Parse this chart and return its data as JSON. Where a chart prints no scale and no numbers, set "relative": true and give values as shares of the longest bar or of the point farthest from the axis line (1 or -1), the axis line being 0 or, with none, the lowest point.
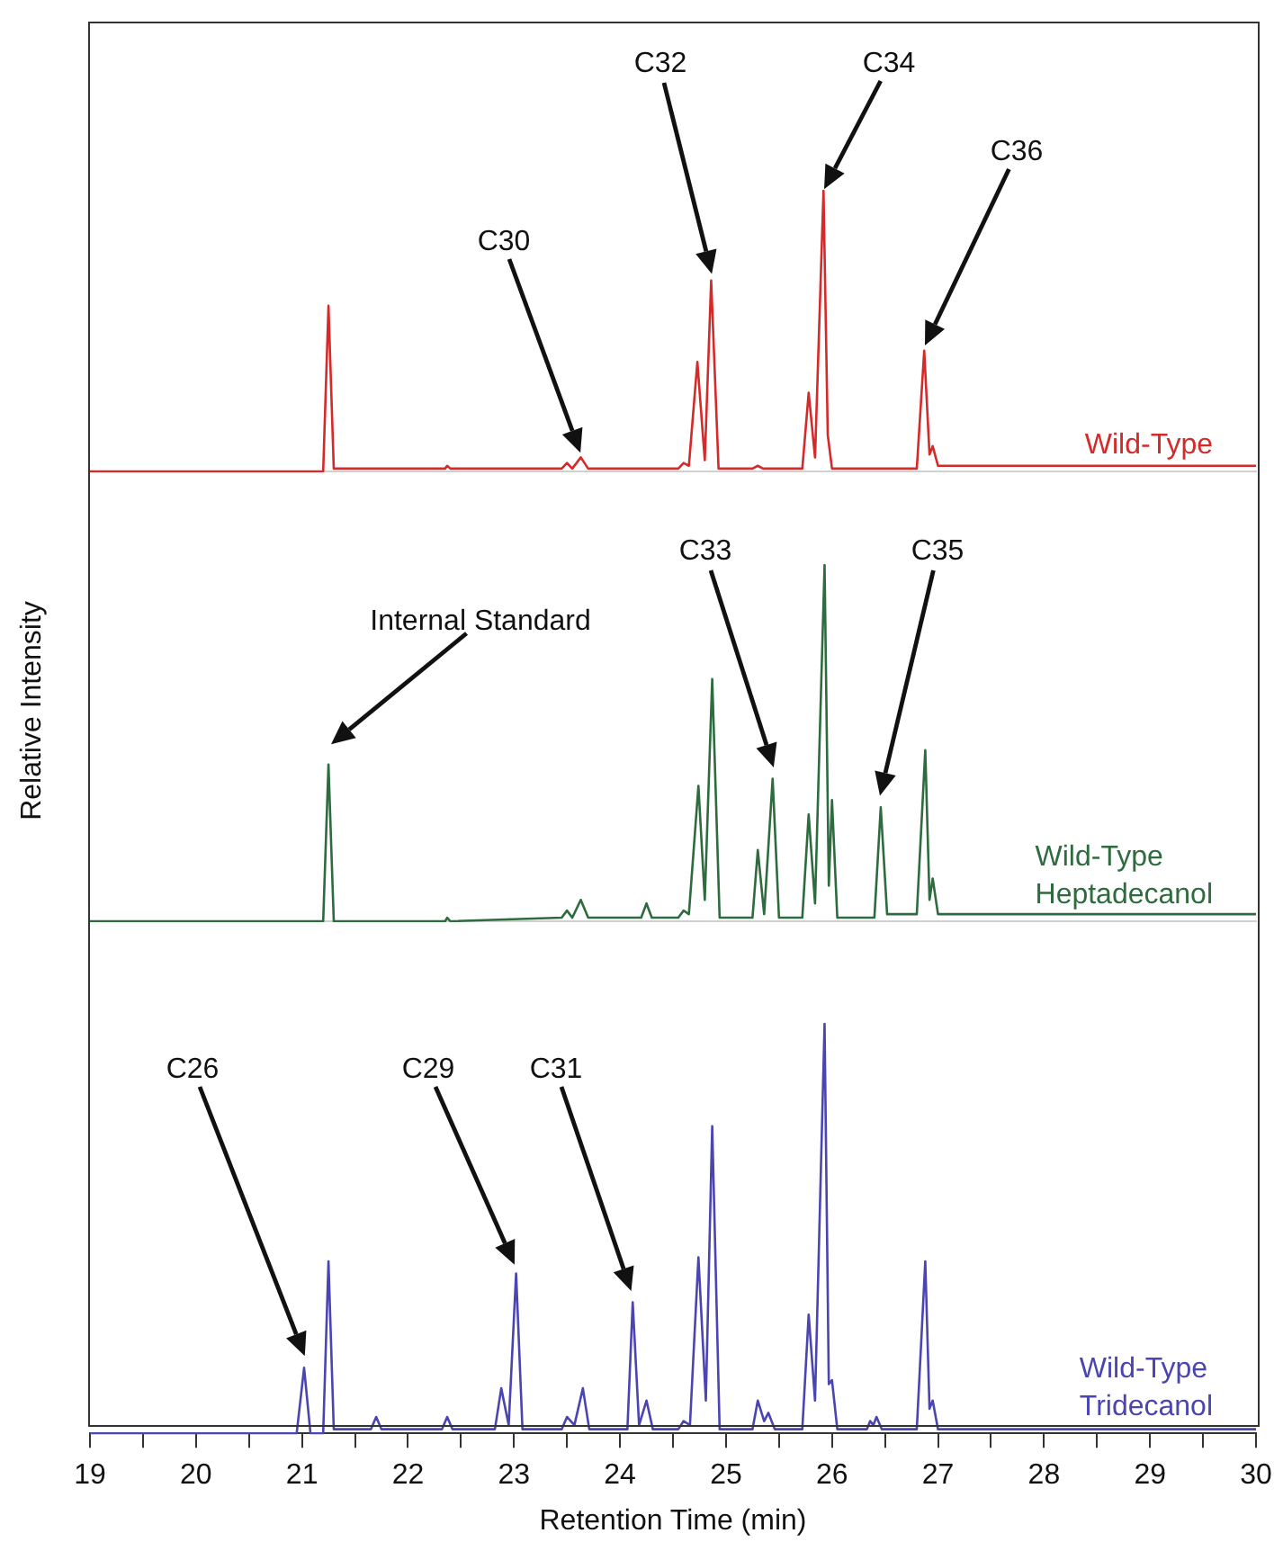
{
  "chart_data": [
    {
      "type": "line",
      "relative": true,
      "tick_labels": false,
      "xlim": [
        19,
        30
      ],
      "series": [
        {
          "name": "Wild-Type",
          "color": "#d42a2a",
          "x": [
            19,
            21.2,
            21.25,
            21.3,
            22.35,
            22.37,
            22.4,
            23.45,
            23.5,
            23.55,
            23.63,
            23.7,
            24.55,
            24.6,
            24.65,
            24.73,
            24.8,
            24.86,
            24.93,
            25.25,
            25.3,
            25.35,
            25.72,
            25.78,
            25.84,
            25.92,
            25.96,
            26.0,
            26.8,
            26.87,
            26.92,
            26.95,
            27.0,
            30
          ],
          "values": [
            0,
            0,
            0.59,
            0.01,
            0.01,
            0.02,
            0.01,
            0.01,
            0.03,
            0.01,
            0.05,
            0.01,
            0.01,
            0.03,
            0.02,
            0.39,
            0.04,
            0.68,
            0.01,
            0.01,
            0.02,
            0.01,
            0.01,
            0.28,
            0.05,
            1,
            0.13,
            0.01,
            0.01,
            0.43,
            0.06,
            0.09,
            0.02,
            0.02
          ]
        }
      ],
      "annotations": [
        "C30",
        "C32",
        "C34",
        "C36"
      ]
    },
    {
      "type": "line",
      "relative": true,
      "tick_labels": false,
      "xlim": [
        19,
        30
      ],
      "ylabel": "Relative Intensity",
      "series": [
        {
          "name": "Wild-Type Heptadecanol",
          "color": "#2e6b3e",
          "x": [
            19,
            21.2,
            21.25,
            21.3,
            22.35,
            22.37,
            22.4,
            23.45,
            23.5,
            23.55,
            23.63,
            23.7,
            24.2,
            24.25,
            24.3,
            24.55,
            24.6,
            24.65,
            24.74,
            24.8,
            24.87,
            24.94,
            25.25,
            25.3,
            25.36,
            25.44,
            25.5,
            25.72,
            25.78,
            25.84,
            25.93,
            25.97,
            26.0,
            26.05,
            26.4,
            26.46,
            26.52,
            26.8,
            26.88,
            26.92,
            26.95,
            27.0,
            30
          ],
          "values": [
            0,
            0,
            0.44,
            0,
            0,
            0.01,
            0,
            0.01,
            0.03,
            0.01,
            0.06,
            0.01,
            0.01,
            0.05,
            0.01,
            0.01,
            0.03,
            0.02,
            0.38,
            0.06,
            0.68,
            0.01,
            0.01,
            0.2,
            0.02,
            0.4,
            0.01,
            0.01,
            0.3,
            0.05,
            1,
            0.1,
            0.34,
            0.01,
            0.01,
            0.32,
            0.02,
            0.02,
            0.48,
            0.06,
            0.12,
            0.02,
            0.02
          ]
        }
      ],
      "annotations": [
        "Internal Standard",
        "C33",
        "C35"
      ]
    },
    {
      "type": "line",
      "relative": true,
      "tick_labels": "x",
      "xlim": [
        19,
        30
      ],
      "xlabel": "Retention Time (min)",
      "xticks": [
        19,
        {
          "value": 19.5,
          "label": null
        },
        20,
        {
          "value": 20.5,
          "label": null
        },
        21,
        {
          "value": 21.5,
          "label": null
        },
        22,
        {
          "value": 22.5,
          "label": null
        },
        23,
        {
          "value": 23.5,
          "label": null
        },
        24,
        {
          "value": 24.5,
          "label": null
        },
        25,
        {
          "value": 25.5,
          "label": null
        },
        26,
        {
          "value": 26.5,
          "label": null
        },
        27,
        {
          "value": 27.5,
          "label": null
        },
        28,
        {
          "value": 28.5,
          "label": null
        },
        29,
        {
          "value": 29.5,
          "label": null
        },
        30
      ],
      "series": [
        {
          "name": "Wild-Type Tridecanol",
          "color": "#4a45b0",
          "x": [
            19,
            20.95,
            21.02,
            21.08,
            21.2,
            21.25,
            21.3,
            21.65,
            21.7,
            21.75,
            22.32,
            22.37,
            22.42,
            22.82,
            22.88,
            22.95,
            23.02,
            23.08,
            23.45,
            23.5,
            23.57,
            23.65,
            23.71,
            24.07,
            24.12,
            24.18,
            24.25,
            24.31,
            24.55,
            24.6,
            24.66,
            24.74,
            24.81,
            24.87,
            24.94,
            25.25,
            25.3,
            25.36,
            25.4,
            25.46,
            25.72,
            25.78,
            25.84,
            25.93,
            25.97,
            26.0,
            26.05,
            26.33,
            26.36,
            26.39,
            26.42,
            26.47,
            26.8,
            26.88,
            26.92,
            26.95,
            27.0,
            30
          ],
          "values": [
            0,
            0,
            0.16,
            0,
            0,
            0.42,
            0.01,
            0.01,
            0.04,
            0.01,
            0.01,
            0.04,
            0.01,
            0.01,
            0.11,
            0.02,
            0.39,
            0.01,
            0.01,
            0.04,
            0.02,
            0.11,
            0.01,
            0.01,
            0.32,
            0.02,
            0.08,
            0.01,
            0.01,
            0.03,
            0.02,
            0.43,
            0.08,
            0.75,
            0.01,
            0.01,
            0.08,
            0.03,
            0.05,
            0.01,
            0.01,
            0.29,
            0.08,
            1,
            0.12,
            0.13,
            0.01,
            0.01,
            0.03,
            0.02,
            0.04,
            0.01,
            0.01,
            0.42,
            0.06,
            0.08,
            0.01,
            0.01
          ]
        }
      ],
      "annotations": [
        "C26",
        "C29",
        "C31"
      ]
    }
  ]
}
